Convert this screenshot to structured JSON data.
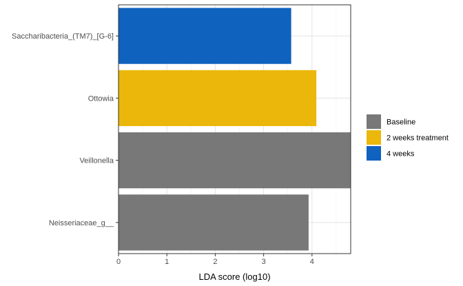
{
  "chart_data": {
    "type": "bar",
    "orientation": "horizontal",
    "categories": [
      "Saccharibacteria_(TM7)_[G-6]",
      "Ottowia",
      "Veillonella",
      "Neisseriaceae_g__"
    ],
    "values": [
      3.57,
      4.09,
      4.88,
      3.93
    ],
    "groups": [
      "4 weeks",
      "2 weeks treatment",
      "Baseline",
      "Baseline"
    ],
    "xlabel": "LDA score (log10)",
    "ylabel": "",
    "xlim": [
      0,
      4.8
    ],
    "xticks": [
      0,
      1,
      2,
      3,
      4
    ],
    "grid": true,
    "legend": {
      "placement": "right",
      "entries": [
        {
          "name": "Baseline",
          "color": "#787878"
        },
        {
          "name": "2 weeks treatment",
          "color": "#EBB70A"
        },
        {
          "name": "4 weeks",
          "color": "#0F62BE"
        }
      ]
    }
  }
}
